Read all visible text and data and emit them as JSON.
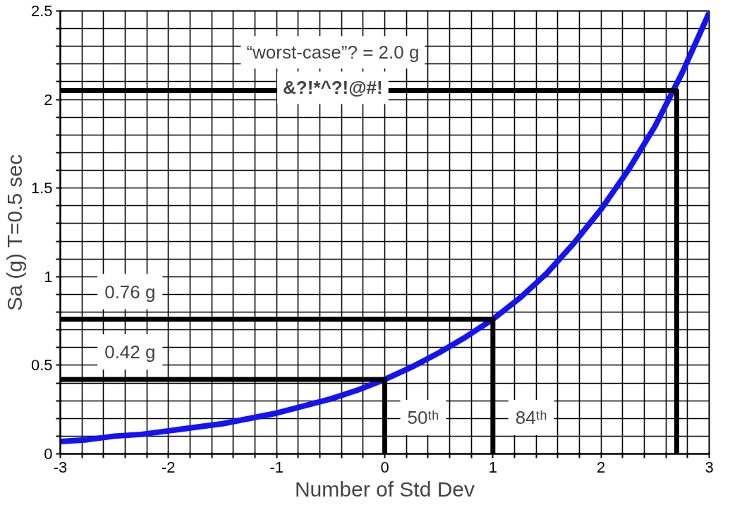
{
  "chart_data": {
    "type": "line",
    "xlabel": "Number of Std Dev",
    "ylabel": "Sa (g) T=0.5 sec",
    "xlim": [
      -3,
      3
    ],
    "ylim": [
      0,
      2.5
    ],
    "xticks": [
      -3,
      {
        "value": -2.8,
        "label": null
      },
      {
        "value": -2.6,
        "label": null
      },
      {
        "value": -2.4,
        "label": null
      },
      {
        "value": -2.2,
        "label": null
      },
      -2,
      {
        "value": -1.8,
        "label": null
      },
      {
        "value": -1.6,
        "label": null
      },
      {
        "value": -1.4,
        "label": null
      },
      {
        "value": -1.2,
        "label": null
      },
      -1,
      {
        "value": -0.8,
        "label": null
      },
      {
        "value": -0.6,
        "label": null
      },
      {
        "value": -0.4,
        "label": null
      },
      {
        "value": -0.2,
        "label": null
      },
      0,
      {
        "value": 0.2,
        "label": null
      },
      {
        "value": 0.4,
        "label": null
      },
      {
        "value": 0.6,
        "label": null
      },
      {
        "value": 0.8,
        "label": null
      },
      1,
      {
        "value": 1.2,
        "label": null
      },
      {
        "value": 1.4,
        "label": null
      },
      {
        "value": 1.6,
        "label": null
      },
      {
        "value": 1.8,
        "label": null
      },
      2,
      {
        "value": 2.2,
        "label": null
      },
      {
        "value": 2.4,
        "label": null
      },
      {
        "value": 2.6,
        "label": null
      },
      {
        "value": 2.8,
        "label": null
      },
      3
    ],
    "yticks": [
      0,
      {
        "value": 0.1,
        "label": null
      },
      {
        "value": 0.2,
        "label": null
      },
      {
        "value": 0.3,
        "label": null
      },
      {
        "value": 0.4,
        "label": null
      },
      0.5,
      {
        "value": 0.6,
        "label": null
      },
      {
        "value": 0.7,
        "label": null
      },
      {
        "value": 0.8,
        "label": null
      },
      {
        "value": 0.9,
        "label": null
      },
      1,
      {
        "value": 1.1,
        "label": null
      },
      {
        "value": 1.2,
        "label": null
      },
      {
        "value": 1.3,
        "label": null
      },
      {
        "value": 1.4,
        "label": null
      },
      1.5,
      {
        "value": 1.6,
        "label": null
      },
      {
        "value": 1.7,
        "label": null
      },
      {
        "value": 1.8,
        "label": null
      },
      {
        "value": 1.9,
        "label": null
      },
      2,
      {
        "value": 2.1,
        "label": null
      },
      {
        "value": 2.2,
        "label": null
      },
      {
        "value": 2.3,
        "label": null
      },
      {
        "value": 2.4,
        "label": null
      },
      2.5
    ],
    "grid": true,
    "marker": "none",
    "line_style": "solid",
    "series": [
      {
        "color": "#1414f0",
        "x": [
          -3,
          -2.75,
          -2.5,
          -2.25,
          -2,
          -1.75,
          -1.5,
          -1.25,
          -1,
          -0.75,
          -0.5,
          -0.25,
          0,
          0.25,
          0.5,
          0.75,
          1,
          1.25,
          1.5,
          1.75,
          2,
          2.25,
          2.5,
          2.75,
          3
        ],
        "values": [
          0.07,
          0.08,
          0.1,
          0.11,
          0.13,
          0.15,
          0.17,
          0.2,
          0.23,
          0.27,
          0.31,
          0.36,
          0.42,
          0.49,
          0.57,
          0.66,
          0.76,
          0.88,
          1.02,
          1.19,
          1.38,
          1.6,
          1.85,
          2.15,
          2.49
        ]
      },
      {
        "color": "#000000",
        "x": [
          -3,
          0,
          0
        ],
        "values": [
          0.42,
          0.42,
          0
        ]
      },
      {
        "color": "#000000",
        "x": [
          -3,
          1,
          1
        ],
        "values": [
          0.76,
          0.76,
          0
        ]
      },
      {
        "color": "#000000",
        "x": [
          -3,
          2.7,
          2.7
        ],
        "values": [
          2.05,
          2.05,
          0
        ]
      }
    ],
    "annotations": [
      "“worst-case”? = 2.0 g",
      "&?!*^?!@#!",
      {
        "text": "0.76 g",
        "x": -2.8,
        "y": 0.76
      },
      {
        "text": "0.42 g",
        "x": -2.8,
        "y": 0.42
      },
      {
        "text": "50ᵗʰ",
        "x": 0,
        "y": 0.05
      },
      {
        "text": "84ᵗʰ",
        "x": 1,
        "y": 0.05
      }
    ]
  }
}
